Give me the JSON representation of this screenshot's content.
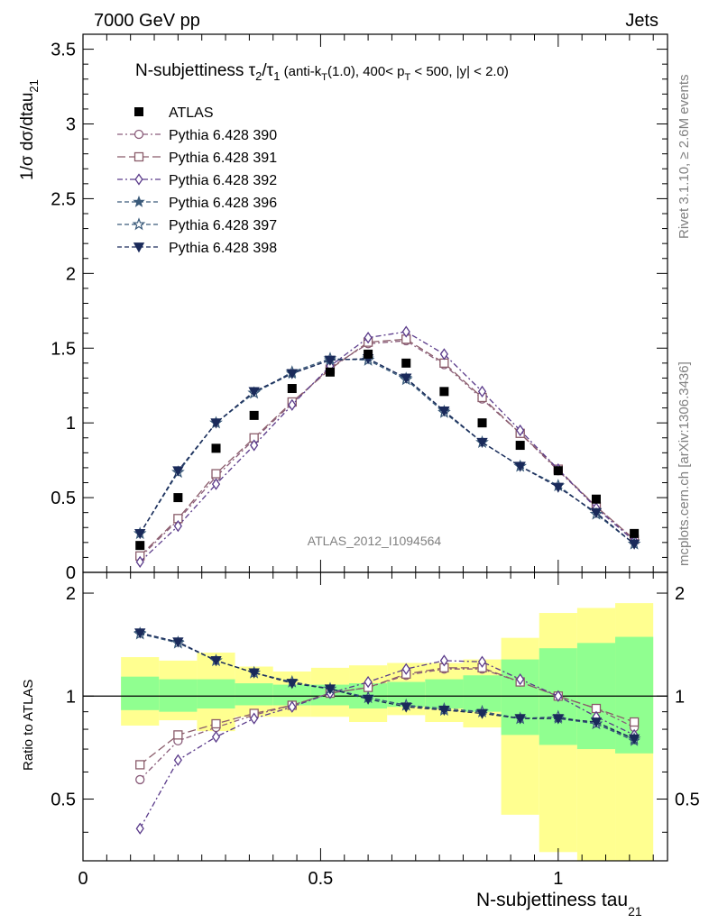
{
  "header": {
    "energy_label": "7000 GeV pp",
    "type_label": "Jets"
  },
  "side": {
    "rivet_label": "Rivet 3.1.10, ≥ 2.6M events",
    "mcplots_label": "mcplots.cern.ch [arXiv:1306.3436]"
  },
  "chart_data": {
    "type": "scatter",
    "title_main": "N-subjettiness τ",
    "title_sub2": "2",
    "title_slash": "/τ",
    "title_sub1": "1",
    "title_paren_a": " (anti-k",
    "title_paren_sub_t": "T",
    "title_paren_b": "(1.0), 400< p",
    "title_paren_sub_t2": "T",
    "title_paren_c": " < 500, |y| < 2.0)",
    "ylabel_main": "1/σ dσ/dtau",
    "ylabel_sub": "21",
    "ylabel_ratio": "Ratio to ATLAS",
    "xlabel_main": "N-subjettiness tau",
    "xlabel_sub": "21",
    "watermark": "ATLAS_2012_I1094564",
    "xlim": [
      0,
      1.23
    ],
    "ylim": [
      0,
      3.6
    ],
    "ratio_ylim": [
      0.33,
      2.3
    ],
    "x_ticks": [
      "0",
      "0.5",
      "1"
    ],
    "y_ticks": [
      "0",
      "0.5",
      "1",
      "1.5",
      "2",
      "2.5",
      "3",
      "3.5"
    ],
    "ratio_ticks": [
      "0.5",
      "1",
      "2"
    ],
    "x": [
      0.12,
      0.2,
      0.28,
      0.36,
      0.44,
      0.52,
      0.6,
      0.68,
      0.76,
      0.84,
      0.92,
      1.0,
      1.08,
      1.16
    ],
    "bin_edges": [
      0.08,
      0.16,
      0.24,
      0.32,
      0.4,
      0.48,
      0.56,
      0.64,
      0.72,
      0.8,
      0.88,
      0.96,
      1.04,
      1.12,
      1.2
    ],
    "data": {
      "name": "ATLAS",
      "values": [
        0.18,
        0.5,
        0.83,
        1.05,
        1.23,
        1.34,
        1.46,
        1.4,
        1.21,
        1.0,
        0.85,
        0.68,
        0.49,
        0.26
      ]
    },
    "bands": {
      "yellow_lo": [
        0.82,
        0.85,
        0.79,
        0.87,
        0.87,
        0.87,
        0.84,
        0.88,
        0.84,
        0.81,
        0.45,
        0.35,
        0.25,
        0.2
      ],
      "yellow_hi": [
        1.3,
        1.27,
        1.34,
        1.22,
        1.18,
        1.21,
        1.23,
        1.25,
        1.25,
        1.28,
        1.48,
        1.75,
        1.81,
        1.87
      ],
      "green_lo": [
        0.91,
        0.9,
        0.92,
        0.94,
        0.94,
        0.94,
        0.92,
        0.93,
        0.92,
        0.9,
        0.77,
        0.72,
        0.7,
        0.68
      ],
      "green_hi": [
        1.14,
        1.12,
        1.12,
        1.09,
        1.08,
        1.08,
        1.09,
        1.1,
        1.12,
        1.15,
        1.28,
        1.38,
        1.43,
        1.49
      ]
    },
    "series": [
      {
        "name": "Pythia 6.428 390",
        "color": "#8a5c7a",
        "dash": "6,3,2,3",
        "marker": "circle",
        "values": [
          0.1,
          0.35,
          0.64,
          0.89,
          1.13,
          1.37,
          1.53,
          1.55,
          1.39,
          1.16,
          0.93,
          0.68,
          0.44,
          0.22
        ],
        "ratio": [
          0.57,
          0.74,
          0.81,
          0.88,
          0.94,
          1.02,
          1.06,
          1.15,
          1.2,
          1.2,
          1.1,
          1.0,
          0.92,
          0.81
        ]
      },
      {
        "name": "Pythia 6.428 391",
        "color": "#8a5c6a",
        "dash": "9,4",
        "marker": "square",
        "values": [
          0.11,
          0.36,
          0.66,
          0.9,
          1.14,
          1.36,
          1.54,
          1.56,
          1.4,
          1.17,
          0.93,
          0.69,
          0.44,
          0.22
        ],
        "ratio": [
          0.63,
          0.77,
          0.83,
          0.89,
          0.94,
          1.02,
          1.06,
          1.16,
          1.21,
          1.21,
          1.1,
          1.0,
          0.92,
          0.84
        ]
      },
      {
        "name": "Pythia 6.428 392",
        "color": "#5a3a8a",
        "dash": "6,3,2,3",
        "marker": "diamond",
        "values": [
          0.07,
          0.31,
          0.59,
          0.85,
          1.12,
          1.38,
          1.57,
          1.61,
          1.46,
          1.21,
          0.95,
          0.69,
          0.43,
          0.21
        ],
        "ratio": [
          0.41,
          0.65,
          0.76,
          0.86,
          0.93,
          1.02,
          1.1,
          1.2,
          1.27,
          1.26,
          1.12,
          1.0,
          0.87,
          0.77
        ]
      },
      {
        "name": "Pythia 6.428 396",
        "color": "#3a5a7a",
        "dash": "5,3",
        "marker": "star-filled",
        "values": [
          0.26,
          0.67,
          1.0,
          1.2,
          1.33,
          1.42,
          1.43,
          1.3,
          1.08,
          0.87,
          0.71,
          0.58,
          0.39,
          0.19
        ],
        "ratio": [
          1.53,
          1.44,
          1.27,
          1.17,
          1.1,
          1.05,
          0.99,
          0.94,
          0.92,
          0.9,
          0.86,
          0.86,
          0.83,
          0.74
        ]
      },
      {
        "name": "Pythia 6.428 397",
        "color": "#3a5a7a",
        "dash": "5,3",
        "marker": "star-open",
        "values": [
          0.26,
          0.67,
          1.0,
          1.2,
          1.34,
          1.43,
          1.42,
          1.29,
          1.07,
          0.87,
          0.71,
          0.58,
          0.39,
          0.19
        ],
        "ratio": [
          1.52,
          1.43,
          1.27,
          1.17,
          1.1,
          1.05,
          0.99,
          0.94,
          0.91,
          0.9,
          0.86,
          0.87,
          0.83,
          0.75
        ]
      },
      {
        "name": "Pythia 6.428 398",
        "color": "#1a2a5a",
        "dash": "5,3",
        "marker": "tri-down",
        "values": [
          0.26,
          0.68,
          1.0,
          1.21,
          1.33,
          1.42,
          1.43,
          1.3,
          1.08,
          0.87,
          0.71,
          0.57,
          0.4,
          0.19
        ],
        "ratio": [
          1.53,
          1.44,
          1.27,
          1.17,
          1.09,
          1.05,
          0.98,
          0.93,
          0.91,
          0.89,
          0.86,
          0.86,
          0.84,
          0.75
        ]
      }
    ],
    "legend_position": "top-left",
    "grid": false
  }
}
